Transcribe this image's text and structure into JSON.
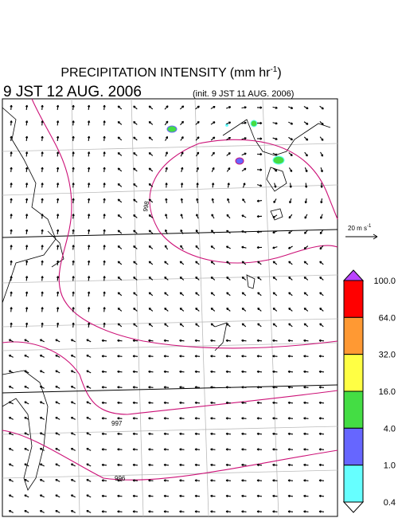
{
  "header": {
    "title": "PRECIPITATION INTENSITY (mm hr",
    "title_exponent": "-1",
    "title_close": ")",
    "valid_time": "9 JST 12 AUG. 2006",
    "init_time": "(init. 9 JST 11 AUG. 2006)"
  },
  "wind_scale": {
    "label": "20 m s",
    "exponent": "-1"
  },
  "colorbar": {
    "labels": [
      "100.0",
      "64.0",
      "32.0",
      "16.0",
      "4.0",
      "1.0",
      "0.4"
    ],
    "colors": [
      "#ff0000",
      "#ff9933",
      "#ffff44",
      "#44dd44",
      "#6666ff",
      "#66ffff"
    ],
    "over_color": "#bb44ff",
    "under_color": "#ffffff"
  },
  "contours": {
    "labels": [
      "998",
      "997",
      "996"
    ]
  }
}
